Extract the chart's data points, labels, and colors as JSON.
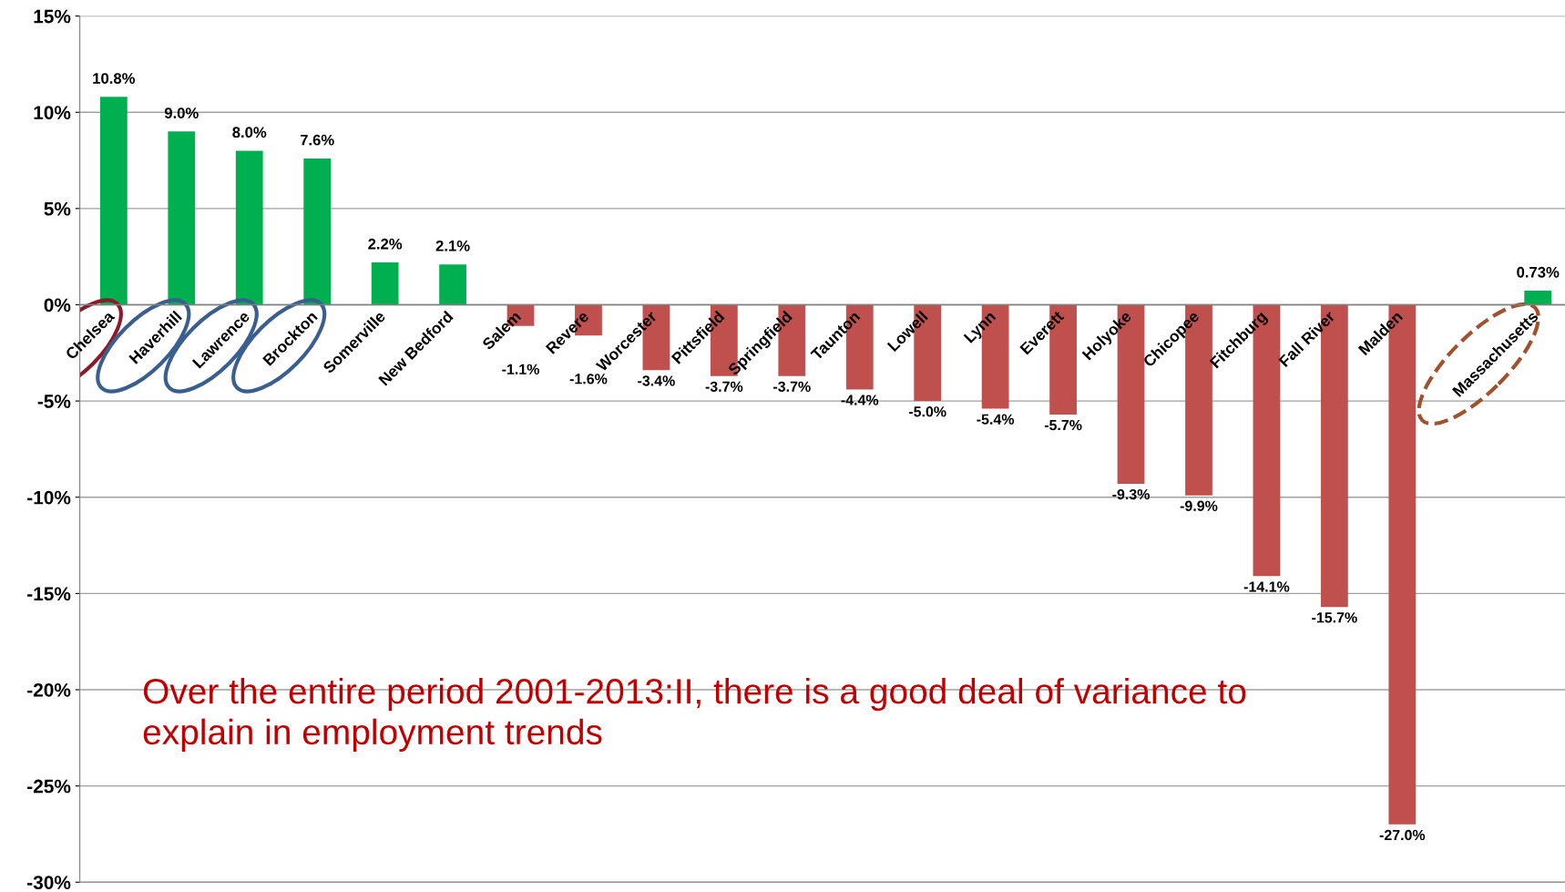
{
  "chart_data": {
    "type": "bar",
    "categories": [
      "Chelsea",
      "Haverhill",
      "Lawrence",
      "Brockton",
      "Somerville",
      "New Bedford",
      "Salem",
      "Revere",
      "Worcester",
      "Pittsfield",
      "Springfield",
      "Taunton",
      "Lowell",
      "Lynn",
      "Everett",
      "Holyoke",
      "Chicopee",
      "Fitchburg",
      "Fall River",
      "Malden",
      null,
      "Massachusetts"
    ],
    "values": [
      10.8,
      9.0,
      8.0,
      7.6,
      2.2,
      2.1,
      -1.1,
      -1.6,
      -3.4,
      -3.7,
      -3.7,
      -4.4,
      -5.0,
      -5.4,
      -5.7,
      -9.3,
      -9.9,
      -14.1,
      -15.7,
      -27.0,
      null,
      0.73
    ],
    "value_labels": [
      "10.8%",
      "9.0%",
      "8.0%",
      "7.6%",
      "2.2%",
      "2.1%",
      "-1.1%",
      "-1.6%",
      "-3.4%",
      "-3.7%",
      "-3.7%",
      "-4.4%",
      "-5.0%",
      "-5.4%",
      "-5.7%",
      "-9.3%",
      "-9.9%",
      "-14.1%",
      "-15.7%",
      "-27.0%",
      null,
      "0.73%"
    ],
    "colors": [
      "#00b050",
      "#00b050",
      "#00b050",
      "#00b050",
      "#00b050",
      "#00b050",
      "#c0504d",
      "#c0504d",
      "#c0504d",
      "#c0504d",
      "#c0504d",
      "#c0504d",
      "#c0504d",
      "#c0504d",
      "#c0504d",
      "#c0504d",
      "#c0504d",
      "#c0504d",
      "#c0504d",
      "#c0504d",
      null,
      "#00b050"
    ],
    "ylim": [
      -30,
      15
    ],
    "yticks": [
      {
        "value": -30,
        "label": "-30%"
      },
      {
        "value": -25,
        "label": "-25%"
      },
      {
        "value": -20,
        "label": "-20%"
      },
      {
        "value": -15,
        "label": "-15%"
      },
      {
        "value": -10,
        "label": "-10%"
      },
      {
        "value": -5,
        "label": "-5%"
      },
      {
        "value": 0,
        "label": "0%"
      },
      {
        "value": 5,
        "label": "5%"
      },
      {
        "value": 10,
        "label": "10%"
      },
      {
        "value": 15,
        "label": "15%"
      }
    ],
    "grid": "y",
    "annotations": [
      "Over the entire period 2001-2013:II, there is a good deal of variance to explain in employment trends"
    ]
  }
}
